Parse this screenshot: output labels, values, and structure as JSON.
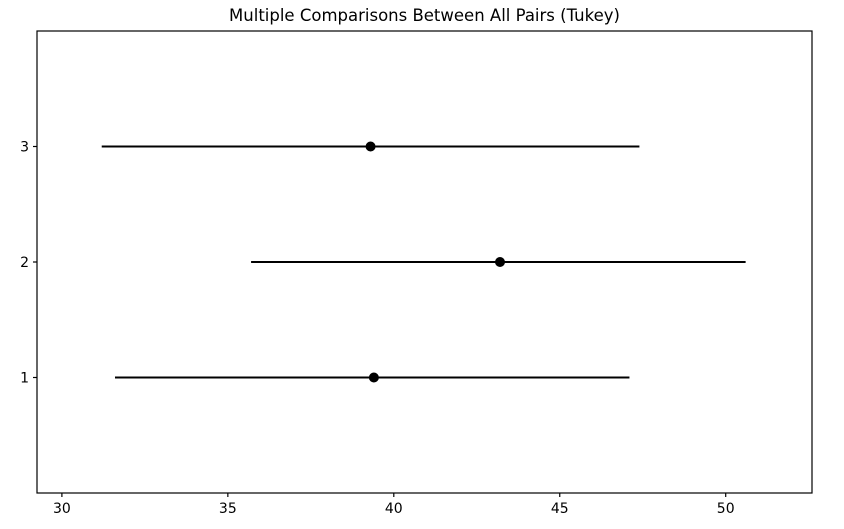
{
  "figure": {
    "background": "#ffffff",
    "foreground": "#000000"
  },
  "chart_data": {
    "type": "scatter",
    "subtype": "tukey-simultaneous-confidence-intervals",
    "title": "Multiple Comparisons Between All Pairs (Tukey)",
    "xlabel": "",
    "ylabel": "",
    "x_ticks": [
      30,
      35,
      40,
      45,
      50
    ],
    "y_ticks": [
      1,
      2,
      3
    ],
    "xlim": [
      29.25,
      52.6
    ],
    "ylim": [
      0,
      4
    ],
    "grid": false,
    "marker_color": "#000000",
    "line_color": "#000000",
    "groups": [
      {
        "label": "1",
        "y": 1,
        "mean": 39.4,
        "ci_low": 31.6,
        "ci_high": 47.1
      },
      {
        "label": "2",
        "y": 2,
        "mean": 43.2,
        "ci_low": 35.7,
        "ci_high": 50.6
      },
      {
        "label": "3",
        "y": 3,
        "mean": 39.3,
        "ci_low": 31.2,
        "ci_high": 47.4
      }
    ]
  }
}
